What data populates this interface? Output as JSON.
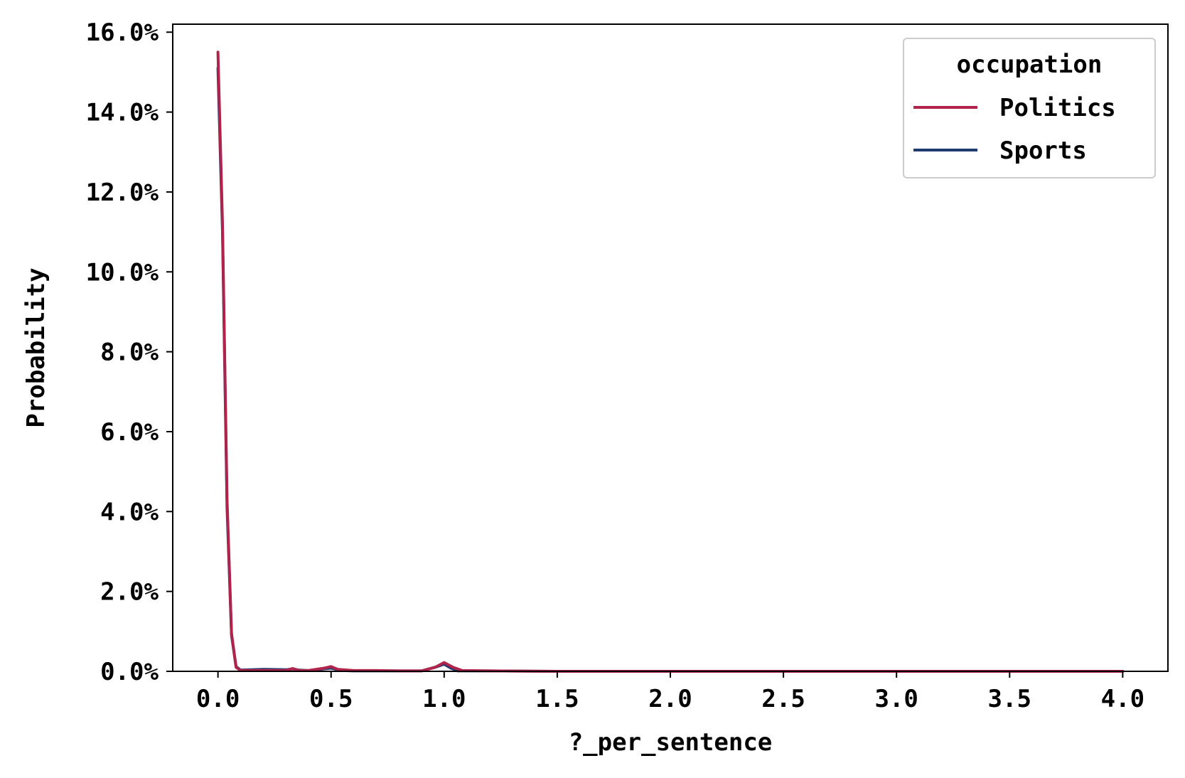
{
  "chart_data": {
    "type": "line",
    "xlabel": "?_per_sentence",
    "ylabel": "Probability",
    "xlim": [
      -0.2,
      4.2
    ],
    "ylim": [
      0,
      16.2
    ],
    "x_ticks": [
      "0.0",
      "0.5",
      "1.0",
      "1.5",
      "2.0",
      "2.5",
      "3.0",
      "3.5",
      "4.0"
    ],
    "x_tick_values": [
      0,
      0.5,
      1.0,
      1.5,
      2.0,
      2.5,
      3.0,
      3.5,
      4.0
    ],
    "y_ticks": [
      "0.0%",
      "2.0%",
      "4.0%",
      "6.0%",
      "8.0%",
      "10.0%",
      "12.0%",
      "14.0%",
      "16.0%"
    ],
    "y_tick_values": [
      0,
      2,
      4,
      6,
      8,
      10,
      12,
      14,
      16
    ],
    "grid": false,
    "legend": {
      "title": "occupation",
      "placement": "top-right"
    },
    "series": [
      {
        "name": "Sports",
        "color": "#1f3a6e",
        "x": [
          0,
          0.02,
          0.04,
          0.06,
          0.08,
          0.1,
          0.2,
          0.3,
          0.33,
          0.36,
          0.4,
          0.5,
          0.55,
          0.6,
          0.7,
          0.8,
          0.9,
          0.97,
          1.0,
          1.03,
          1.06,
          1.2,
          1.5,
          2.0,
          2.5,
          3.0,
          3.5,
          4.0
        ],
        "y": [
          15.1,
          11.0,
          4.1,
          0.9,
          0.12,
          0.03,
          0.05,
          0.04,
          0.06,
          0.03,
          0.02,
          0.08,
          0.02,
          0.01,
          0.01,
          0.01,
          0.01,
          0.12,
          0.18,
          0.08,
          0.01,
          0.01,
          0.0,
          0.0,
          0.0,
          0.0,
          0.0,
          0.0
        ]
      },
      {
        "name": "Politics",
        "color": "#b0234a",
        "x": [
          0,
          0.02,
          0.04,
          0.06,
          0.08,
          0.1,
          0.2,
          0.3,
          0.33,
          0.36,
          0.4,
          0.47,
          0.5,
          0.53,
          0.6,
          0.7,
          0.8,
          0.9,
          0.96,
          1.0,
          1.04,
          1.08,
          1.2,
          1.5,
          2.0,
          2.5,
          3.0,
          3.5,
          4.0
        ],
        "y": [
          15.5,
          11.2,
          4.3,
          0.95,
          0.1,
          0.02,
          0.02,
          0.02,
          0.07,
          0.02,
          0.02,
          0.08,
          0.12,
          0.05,
          0.02,
          0.02,
          0.01,
          0.01,
          0.1,
          0.22,
          0.1,
          0.02,
          0.01,
          0.0,
          0.0,
          0.0,
          0.0,
          0.0,
          0.0
        ]
      }
    ]
  }
}
